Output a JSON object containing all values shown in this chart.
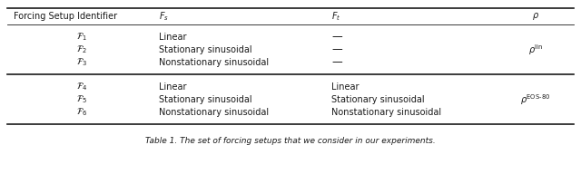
{
  "caption": "Table 1. The set of forcing setups that we consider in our experiments.",
  "header": [
    "Forcing Setup Identifier",
    "$F_s$",
    "$F_t$",
    "$\\rho$"
  ],
  "group1": {
    "identifiers": [
      "$\\mathcal{F}_1$",
      "$\\mathcal{F}_2$",
      "$\\mathcal{F}_3$"
    ],
    "fs": [
      "Linear",
      "Stationary sinusoidal",
      "Nonstationary sinusoidal"
    ],
    "ft": [
      "—",
      "—",
      "—"
    ],
    "rho": "$\\rho^{\\mathrm{lin}}$"
  },
  "group2": {
    "identifiers": [
      "$\\mathcal{F}_4$",
      "$\\mathcal{F}_5$",
      "$\\mathcal{F}_6$"
    ],
    "fs": [
      "Linear",
      "Stationary sinusoidal",
      "Nonstationary sinusoidal"
    ],
    "ft": [
      "Linear",
      "Stationary sinusoidal",
      "Nonstationary sinusoidal"
    ],
    "rho": "$\\rho^{\\mathrm{EOS\\text{-}80}}$"
  },
  "background": "#ffffff",
  "text_color": "#1a1a1a",
  "fontsize": 7.0
}
